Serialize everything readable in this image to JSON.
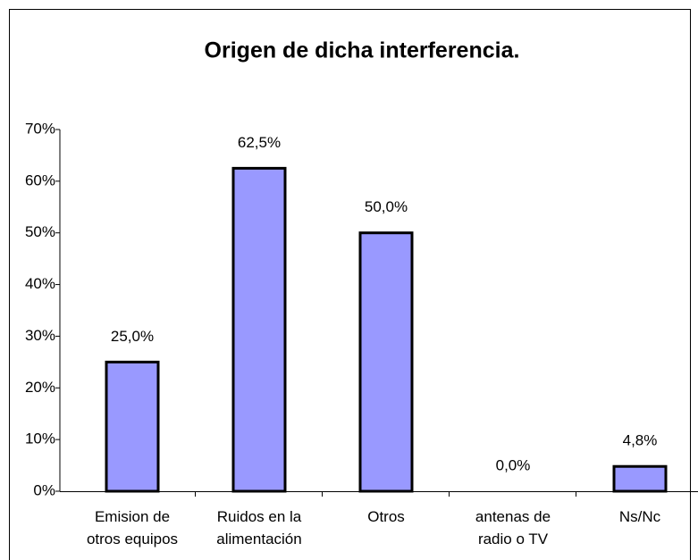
{
  "chart_data": {
    "type": "bar",
    "title": "Origen de dicha interferencia.",
    "categories": [
      "Emision de\notros equipos",
      "Ruidos en la\nalimentación",
      "Otros",
      "antenas de\nradio o TV",
      "Ns/Nc"
    ],
    "values": [
      25,
      62.5,
      50,
      0,
      4.8
    ],
    "value_labels": [
      "25,0%",
      "62,5%",
      "50,0%",
      "0,0%",
      "4,8%"
    ],
    "color": "#9999ff",
    "ylim": [
      0,
      70
    ],
    "yticks": [
      {
        "value": 0,
        "label": "0%"
      },
      {
        "value": 10,
        "label": "10%"
      },
      {
        "value": 20,
        "label": "20%"
      },
      {
        "value": 30,
        "label": "30%"
      },
      {
        "value": 40,
        "label": "40%"
      },
      {
        "value": 50,
        "label": "50%"
      },
      {
        "value": 60,
        "label": "60%"
      },
      {
        "value": 70,
        "label": "70%"
      }
    ],
    "grid": false
  }
}
